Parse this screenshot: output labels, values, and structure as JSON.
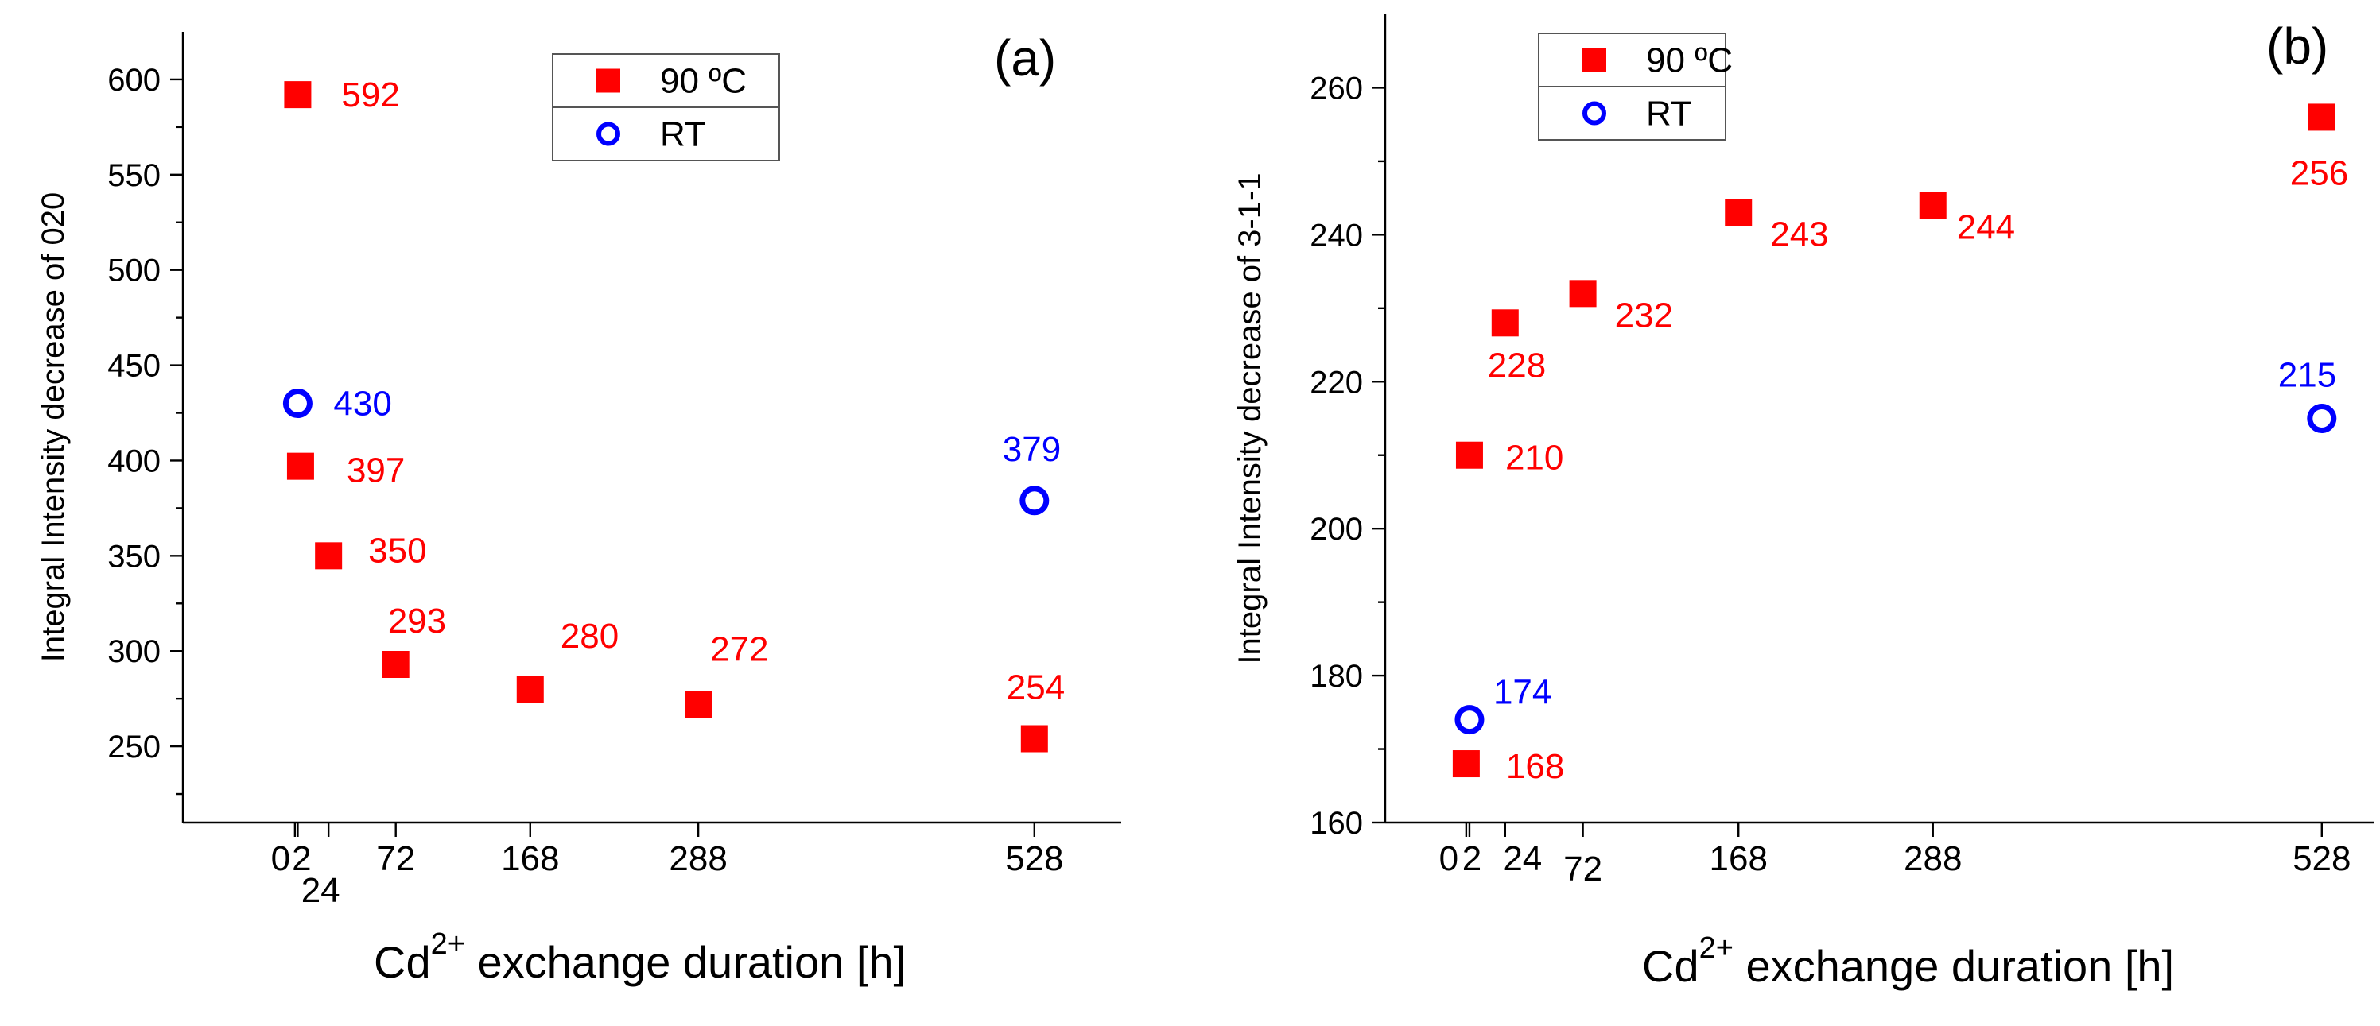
{
  "colors": {
    "series_90C": "#ff0000",
    "series_RT": "#0000ff",
    "axis": "#000000"
  },
  "chart_data": [
    {
      "type": "scatter",
      "panel_label": "(a)",
      "ylabel": "Integral Intensity decrease of  020",
      "xlabel_base": "Cd",
      "xlabel_sup": "2+",
      "xlabel_rest": " exchange duration [h]",
      "xlim": [
        -80,
        590
      ],
      "ylim": [
        210,
        625
      ],
      "xticks": [
        0,
        2,
        24,
        72,
        168,
        288,
        528
      ],
      "xtick_labels": [
        "0",
        "2",
        "24",
        "72",
        "168",
        "288",
        "528"
      ],
      "yticks": [
        250,
        300,
        350,
        400,
        450,
        500,
        550,
        600
      ],
      "ytick_labels": [
        "250",
        "300",
        "350",
        "400",
        "450",
        "500",
        "550",
        "600"
      ],
      "legend_position": "top-center",
      "series": [
        {
          "name": "90 ºC",
          "marker": "square",
          "points": [
            {
              "x": 2,
              "y": 592,
              "label": "592"
            },
            {
              "x": 4,
              "y": 397,
              "label": "397"
            },
            {
              "x": 24,
              "y": 350,
              "label": "350"
            },
            {
              "x": 72,
              "y": 293,
              "label": "293"
            },
            {
              "x": 168,
              "y": 280,
              "label": "280"
            },
            {
              "x": 288,
              "y": 272,
              "label": "272"
            },
            {
              "x": 528,
              "y": 254,
              "label": "254"
            }
          ]
        },
        {
          "name": "RT",
          "marker": "circle",
          "points": [
            {
              "x": 2,
              "y": 430,
              "label": "430"
            },
            {
              "x": 528,
              "y": 379,
              "label": "379"
            }
          ]
        }
      ]
    },
    {
      "type": "scatter",
      "panel_label": "(b)",
      "ylabel": "Integral Intensity decrease of  3-1-1",
      "xlabel_base": "Cd",
      "xlabel_sup": "2+",
      "xlabel_rest": " exchange duration [h]",
      "xlim": [
        -50,
        560
      ],
      "ylim": [
        160,
        270
      ],
      "xticks": [
        0,
        2,
        24,
        72,
        168,
        288,
        528
      ],
      "xtick_labels": [
        "0",
        "2",
        "24",
        "72",
        "168",
        "288",
        "528"
      ],
      "yticks": [
        160,
        180,
        200,
        220,
        240,
        260
      ],
      "ytick_labels": [
        "160",
        "180",
        "200",
        "220",
        "240",
        "260"
      ],
      "legend_position": "top-left",
      "series": [
        {
          "name": "90 ºC",
          "marker": "square",
          "points": [
            {
              "x": 0,
              "y": 168,
              "label": "168"
            },
            {
              "x": 2,
              "y": 210,
              "label": "210"
            },
            {
              "x": 24,
              "y": 228,
              "label": "228"
            },
            {
              "x": 72,
              "y": 232,
              "label": "232"
            },
            {
              "x": 168,
              "y": 243,
              "label": "243"
            },
            {
              "x": 288,
              "y": 244,
              "label": "244"
            },
            {
              "x": 528,
              "y": 256,
              "label": "256"
            }
          ]
        },
        {
          "name": "RT",
          "marker": "circle",
          "points": [
            {
              "x": 2,
              "y": 174,
              "label": "174"
            },
            {
              "x": 528,
              "y": 215,
              "label": "215"
            }
          ]
        }
      ]
    }
  ]
}
